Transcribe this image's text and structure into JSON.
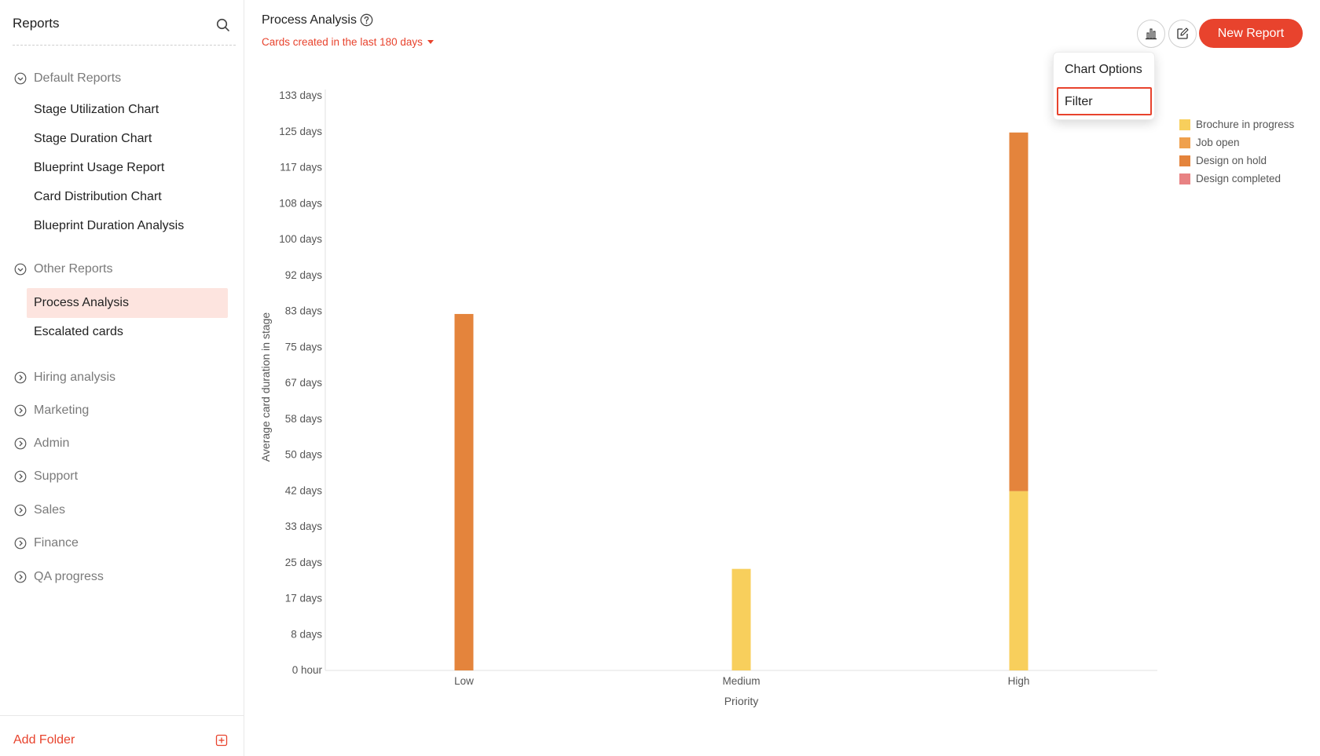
{
  "sidebar": {
    "title": "Reports",
    "groups": [
      {
        "label": "Default Reports",
        "expanded": true,
        "items": [
          "Stage Utilization Chart",
          "Stage Duration Chart",
          "Blueprint Usage Report",
          "Card Distribution Chart",
          "Blueprint Duration Analysis"
        ]
      },
      {
        "label": "Other Reports",
        "expanded": true,
        "items": [
          "Process Analysis",
          "Escalated cards"
        ]
      },
      {
        "label": "Hiring analysis",
        "expanded": false,
        "items": []
      },
      {
        "label": "Marketing",
        "expanded": false,
        "items": []
      },
      {
        "label": "Admin",
        "expanded": false,
        "items": []
      },
      {
        "label": "Support",
        "expanded": false,
        "items": []
      },
      {
        "label": "Sales",
        "expanded": false,
        "items": []
      },
      {
        "label": "Finance",
        "expanded": false,
        "items": []
      },
      {
        "label": "QA progress",
        "expanded": false,
        "items": []
      }
    ],
    "active_item": "Process Analysis",
    "add_folder": "Add Folder"
  },
  "header": {
    "title": "Process Analysis",
    "filter_summary": "Cards created in the last 180 days",
    "new_report": "New Report"
  },
  "dropdown": {
    "items": [
      "Chart Options",
      "Filter"
    ],
    "selected": "Filter"
  },
  "colors": {
    "accent": "#e8432d",
    "active_bg": "#fde4df",
    "brochure": "#f8cf5c",
    "job_open": "#efa04d",
    "design_hold": "#e4843c",
    "design_completed": "#e88283"
  },
  "chart_data": {
    "type": "bar",
    "stacked": true,
    "xlabel": "Priority",
    "ylabel": "Average card duration in stage",
    "categories": [
      "Low",
      "Medium",
      "High"
    ],
    "y_ticks": [
      "0 hour",
      "8 days",
      "17 days",
      "25 days",
      "33 days",
      "42 days",
      "50 days",
      "58 days",
      "67 days",
      "75 days",
      "83 days",
      "92 days",
      "100 days",
      "108 days",
      "117 days",
      "125 days",
      "133 days"
    ],
    "ylim": [
      0,
      133
    ],
    "grid": false,
    "legend_placement": "right",
    "series": [
      {
        "name": "Brochure in progress",
        "color": "#f8cf5c",
        "values": [
          0,
          23.5,
          41.5
        ]
      },
      {
        "name": "Job open",
        "color": "#efa04d",
        "values": [
          0,
          0,
          0
        ]
      },
      {
        "name": "Design on hold",
        "color": "#e4843c",
        "values": [
          82.5,
          0,
          83
        ]
      },
      {
        "name": "Design completed",
        "color": "#e88283",
        "values": [
          0,
          0,
          0
        ]
      }
    ]
  }
}
